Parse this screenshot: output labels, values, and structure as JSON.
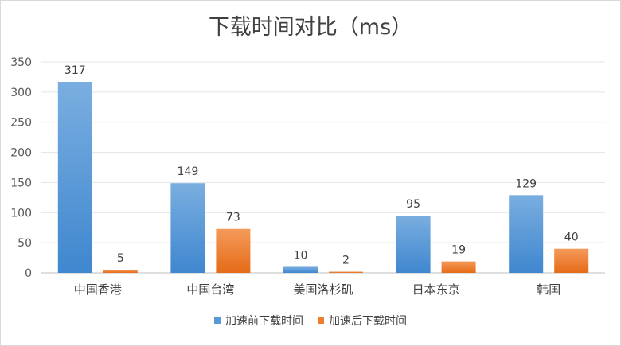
{
  "chart_data": {
    "type": "bar",
    "title": "下载时间对比（ms）",
    "categories": [
      "中国香港",
      "中国台湾",
      "美国洛杉矶",
      "日本东京",
      "韩国"
    ],
    "series": [
      {
        "name": "加速前下载时间",
        "values": [
          317,
          149,
          10,
          95,
          129
        ],
        "color": "#5b9bd5"
      },
      {
        "name": "加速后下载时间",
        "values": [
          5,
          73,
          2,
          19,
          40
        ],
        "color": "#ed7d31"
      }
    ],
    "yticks": [
      "0",
      "50",
      "100",
      "150",
      "200",
      "250",
      "300",
      "350"
    ],
    "ylim": [
      0,
      350
    ],
    "grid": true,
    "legend": "bottom"
  }
}
